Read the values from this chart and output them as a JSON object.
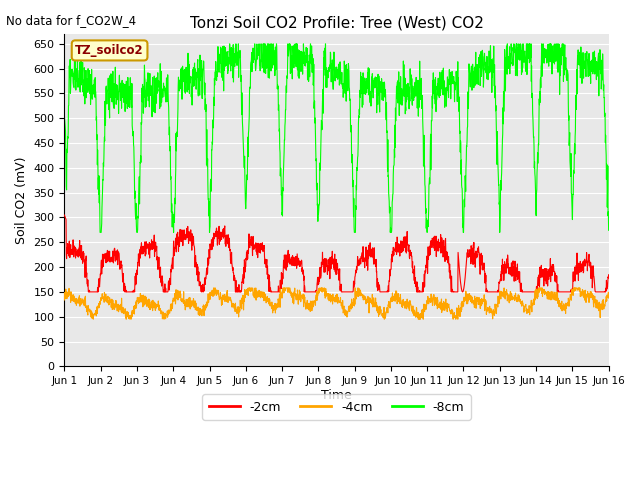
{
  "title": "Tonzi Soil CO2 Profile: Tree (West) CO2",
  "top_left_note": "No data for f_CO2W_4",
  "ylabel": "Soil CO2 (mV)",
  "xlabel": "Time",
  "ylim": [
    0,
    670
  ],
  "yticks": [
    0,
    50,
    100,
    150,
    200,
    250,
    300,
    350,
    400,
    450,
    500,
    550,
    600,
    650
  ],
  "xlim": [
    0,
    15
  ],
  "xtick_labels": [
    "Jun 1",
    "Jun 2",
    "Jun 3",
    "Jun 4",
    "Jun 5",
    "Jun 6",
    "Jun 7",
    "Jun 8",
    "Jun 9",
    "Jun 10",
    "Jun 11",
    "Jun 12",
    "Jun 13",
    "Jun 14",
    "Jun 15",
    "Jun 16"
  ],
  "legend_label": "TZ_soilco2",
  "legend_bg": "#FFFFCC",
  "legend_border": "#CC9900",
  "line_2cm_color": "#FF0000",
  "line_4cm_color": "#FFA500",
  "line_8cm_color": "#00FF00",
  "bg_color": "#FFFFFF",
  "plot_bg_color": "#E8E8E8",
  "grid_color": "#FFFFFF",
  "linewidth": 0.8,
  "figwidth": 6.4,
  "figheight": 4.8,
  "dpi": 100
}
